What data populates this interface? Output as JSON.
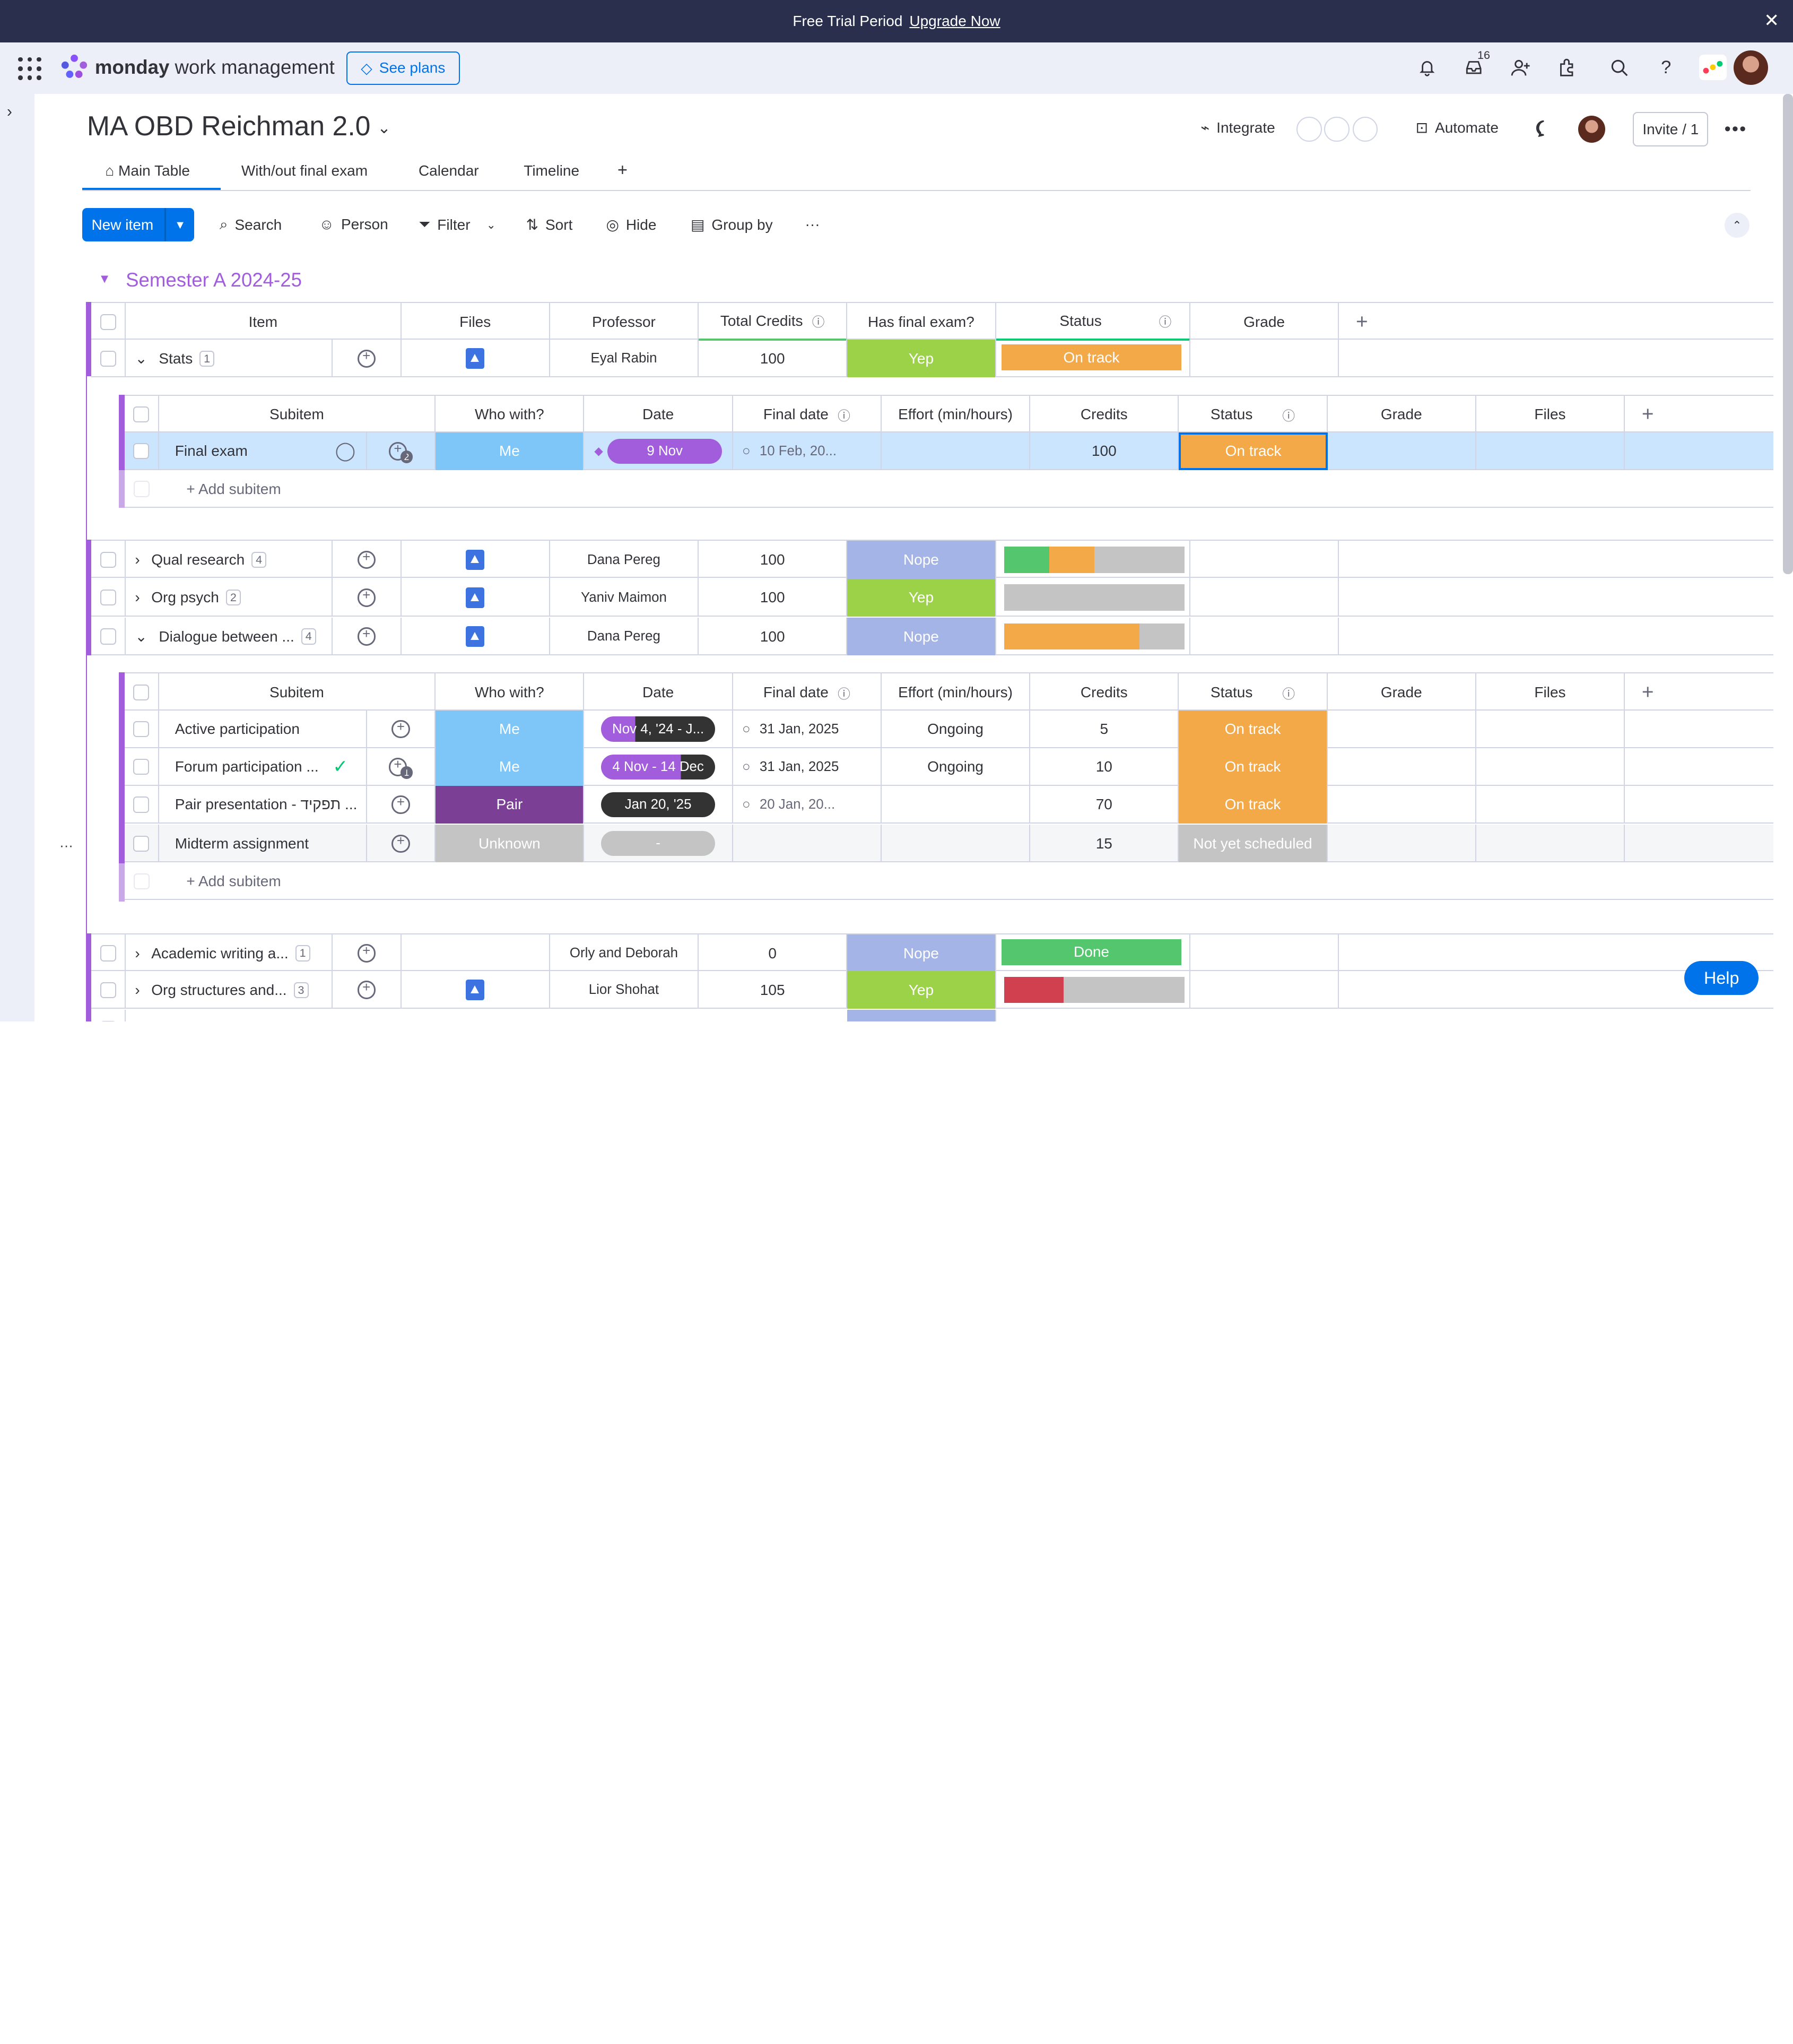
{
  "banner": {
    "text": "Free Trial Period",
    "link": "Upgrade Now"
  },
  "nav": {
    "brand_bold": "monday",
    "brand_rest": "work management",
    "see_plans": "See plans",
    "inbox_count": "16"
  },
  "board": {
    "title": "MA OBD Reichman 2.0",
    "integrate": "Integrate",
    "automate": "Automate",
    "invite": "Invite / 1",
    "tabs": [
      "Main Table",
      "With/out final exam",
      "Calendar",
      "Timeline",
      "+"
    ]
  },
  "toolbar": {
    "new_item": "New item",
    "search": "Search",
    "person": "Person",
    "filter": "Filter",
    "sort": "Sort",
    "hide": "Hide",
    "group_by": "Group by"
  },
  "group": {
    "title": "Semester A 2024-25",
    "columns": [
      "Item",
      "Files",
      "Professor",
      "Total Credits",
      "Has final exam?",
      "Status",
      "Grade"
    ],
    "sub_columns": [
      "Subitem",
      "Who with?",
      "Date",
      "Final date",
      "Effort (min/hours)",
      "Credits",
      "Status",
      "Grade",
      "Files"
    ],
    "items": [
      {
        "name": "Stats",
        "count": "1",
        "professor": "Eyal Rabin",
        "credits": "100",
        "final": "Yep",
        "status": "On track"
      },
      {
        "name": "Qual research",
        "count": "4",
        "professor": "Dana Pereg",
        "credits": "100",
        "final": "Nope"
      },
      {
        "name": "Org psych",
        "count": "2",
        "professor": "Yaniv Maimon",
        "credits": "100",
        "final": "Yep"
      },
      {
        "name": "Dialogue between ...",
        "count": "4",
        "professor": "Dana Pereg",
        "credits": "100",
        "final": "Nope"
      },
      {
        "name": "Academic writing a...",
        "count": "1",
        "professor": "Orly and Deborah",
        "credits": "0",
        "final": "Nope",
        "status": "Done"
      },
      {
        "name": "Org structures and...",
        "count": "3",
        "professor": "Lior Shohat",
        "credits": "105",
        "final": "Yep"
      }
    ],
    "stats_subitems": [
      {
        "name": "Final exam",
        "who": "Me",
        "date": "9 Nov",
        "final_date": "10 Feb, 20...",
        "effort": "",
        "credits": "100",
        "status": "On track"
      }
    ],
    "dialogue_subitems": [
      {
        "name": "Active participation",
        "who": "Me",
        "date_a": "Nov",
        "date_b": "4, '24 - J...",
        "final_date": "31 Jan, 2025",
        "effort": "Ongoing",
        "credits": "5",
        "status": "On track"
      },
      {
        "name": "Forum participation ...",
        "who": "Me",
        "date_a": "4 Nov - 14",
        "date_b": "Dec",
        "final_date": "31 Jan, 2025",
        "effort": "Ongoing",
        "credits": "10",
        "status": "On track"
      },
      {
        "name": "Pair presentation - תפקיד ...",
        "who": "Pair",
        "date_a": "Jan 20, '25",
        "date_b": "",
        "final_date": "20 Jan, 20...",
        "effort": "",
        "credits": "70",
        "status": "On track"
      },
      {
        "name": "Midterm assignment",
        "who": "Unknown",
        "date_a": "-",
        "date_b": "",
        "final_date": "",
        "effort": "",
        "credits": "15",
        "status": "Not yet scheduled"
      }
    ],
    "add_subitem": "+ Add subitem",
    "subitem_update_counts": [
      "2",
      "1"
    ]
  },
  "status_bars": {
    "qual": [
      {
        "color": "#54c76e",
        "frac": 0.25
      },
      {
        "color": "#f4a949",
        "frac": 0.25
      }
    ],
    "org": [],
    "dialogue": [
      {
        "color": "#f4a949",
        "frac": 0.75
      }
    ],
    "orgstruct": [
      {
        "color": "#d0404e",
        "frac": 0.33
      }
    ]
  },
  "colors": {
    "accent": "#0073ea",
    "group": "#a25ddc",
    "on_track": "#f4a949",
    "yep": "#9cd247",
    "nope": "#a4b4e6",
    "done": "#54c76e",
    "me": "#7dc6f7",
    "pair": "#7b3f96",
    "unknown": "#c4c4c4"
  },
  "help": "Help"
}
